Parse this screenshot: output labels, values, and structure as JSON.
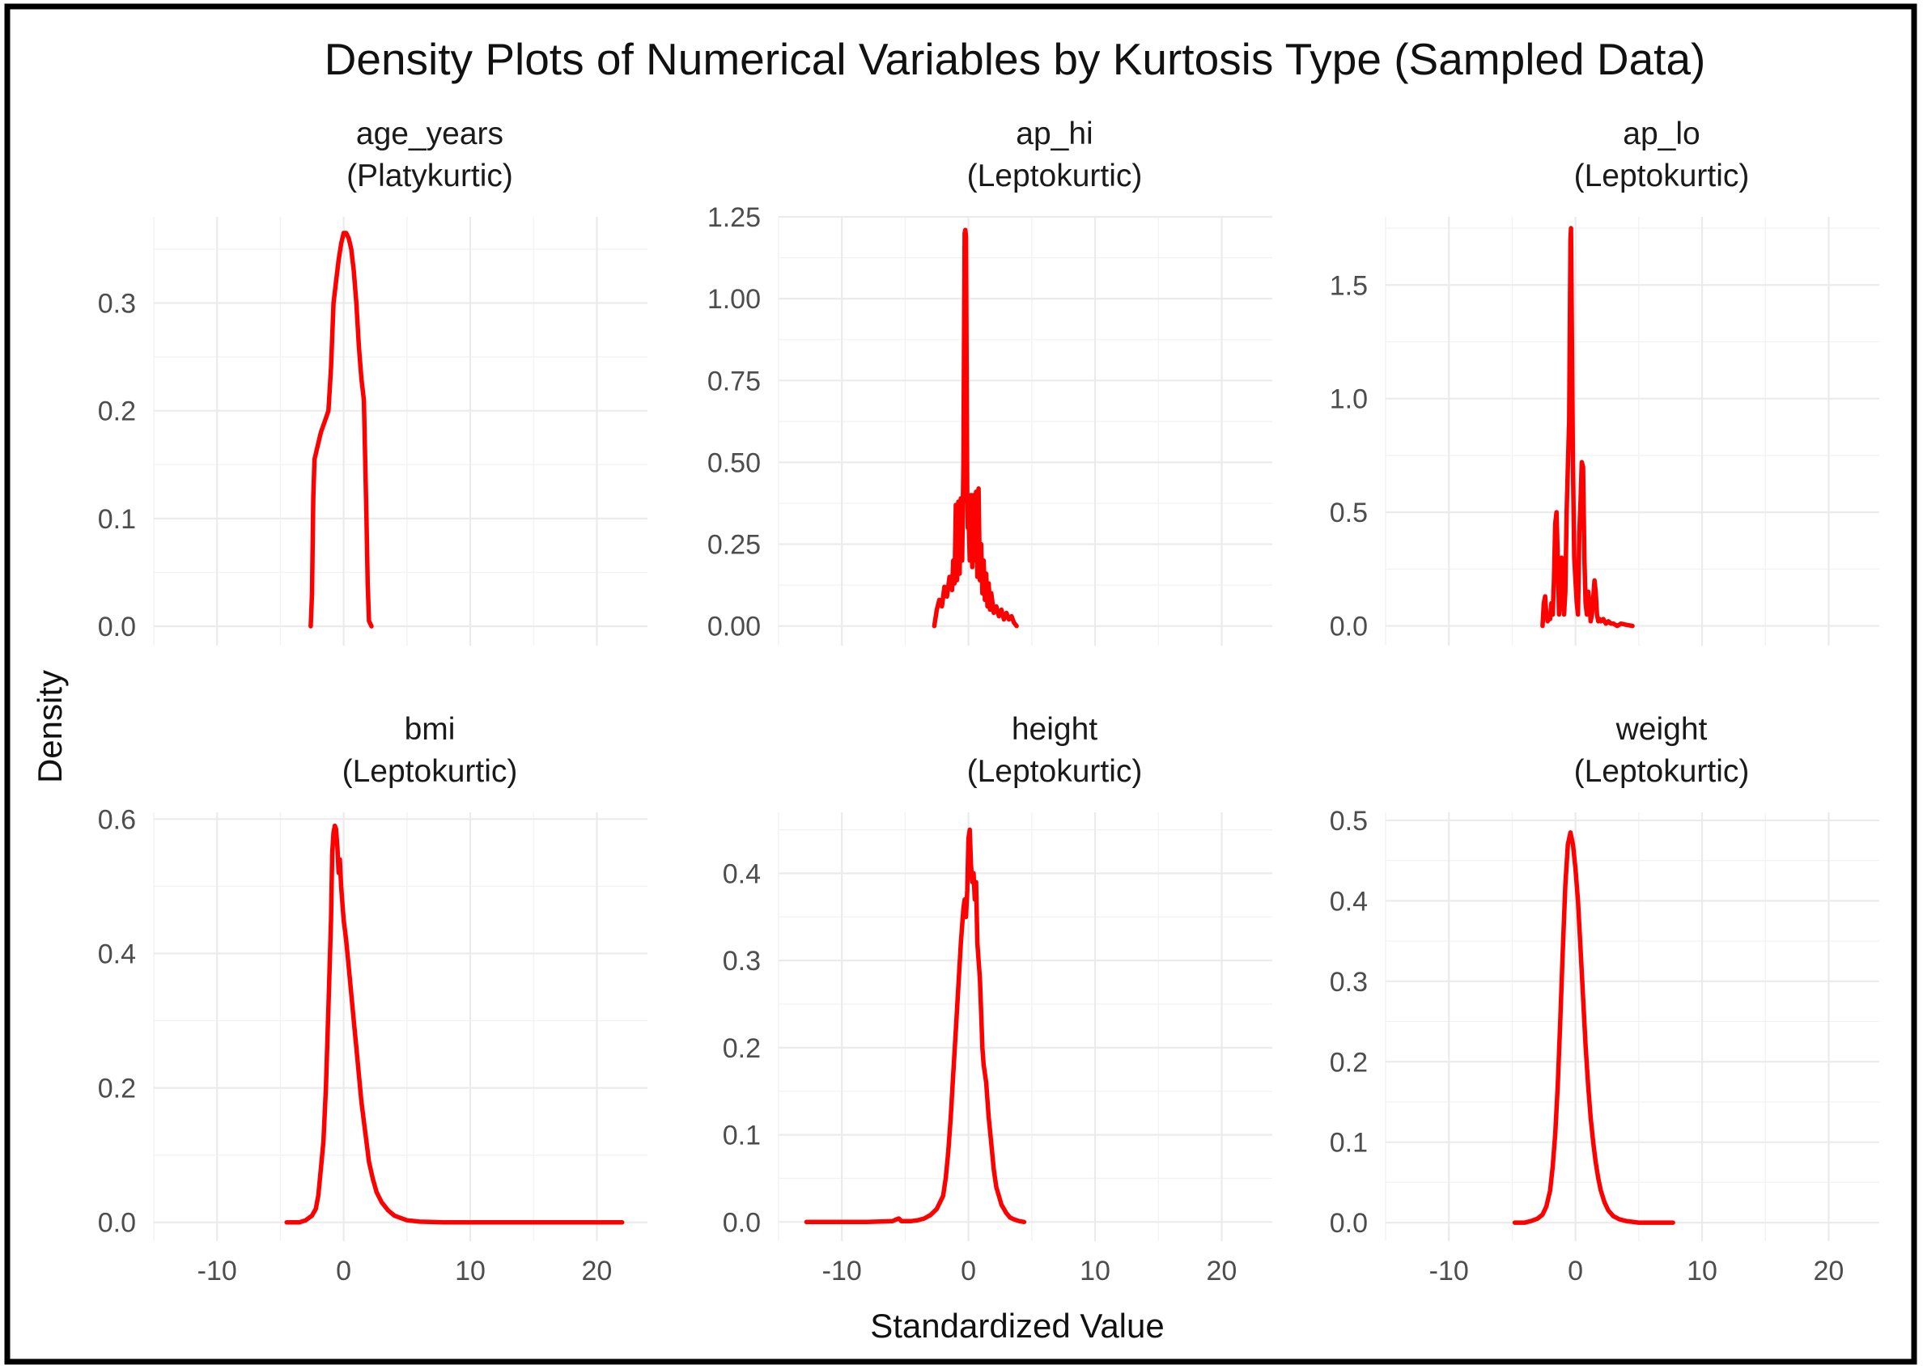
{
  "chart_data": {
    "type": "line",
    "title": "Density Plots of Numerical Variables by Kurtosis Type (Sampled Data)",
    "xlabel": "Standardized Value",
    "ylabel": "Density",
    "line_color": "#ff0000",
    "grid": true,
    "legend": "none",
    "xlim": [
      -15,
      24
    ],
    "x_ticks": [
      -10,
      0,
      10,
      20
    ],
    "x_tick_labels": [
      "-10",
      "0",
      "10",
      "20"
    ],
    "panels": [
      {
        "id": "age_years",
        "variable": "age_years",
        "kurtosis": "(Platykurtic)",
        "ylim": [
          -0.018,
          0.38
        ],
        "y_ticks": [
          0,
          0.1,
          0.2,
          0.3
        ],
        "y_tick_labels": [
          "0.0",
          "0.1",
          "0.2",
          "0.3"
        ],
        "x": [
          -2.6,
          -2.5,
          -2.4,
          -2.3,
          -2.2,
          -2.0,
          -1.8,
          -1.5,
          -1.2,
          -1.0,
          -0.8,
          -0.6,
          -0.4,
          -0.2,
          0.0,
          0.2,
          0.4,
          0.6,
          0.8,
          1.0,
          1.2,
          1.4,
          1.6,
          1.8,
          1.9,
          2.0,
          2.2
        ],
        "y": [
          0.0,
          0.03,
          0.12,
          0.155,
          0.16,
          0.17,
          0.18,
          0.19,
          0.2,
          0.24,
          0.3,
          0.32,
          0.34,
          0.355,
          0.365,
          0.365,
          0.36,
          0.35,
          0.33,
          0.3,
          0.26,
          0.23,
          0.21,
          0.1,
          0.04,
          0.005,
          0.0
        ]
      },
      {
        "id": "ap_hi",
        "variable": "ap_hi",
        "kurtosis": "(Leptokurtic)",
        "ylim": [
          -0.06,
          1.25
        ],
        "y_ticks": [
          0,
          0.25,
          0.5,
          0.75,
          1.0,
          1.25
        ],
        "y_tick_labels": [
          "0.00",
          "0.25",
          "0.50",
          "0.75",
          "1.00",
          "1.25"
        ],
        "x": [
          -2.7,
          -2.5,
          -2.3,
          -2.1,
          -1.9,
          -1.7,
          -1.5,
          -1.3,
          -1.2,
          -1.1,
          -1.0,
          -0.9,
          -0.8,
          -0.7,
          -0.6,
          -0.5,
          -0.4,
          -0.35,
          -0.3,
          -0.25,
          -0.2,
          -0.15,
          -0.1,
          -0.05,
          0.0,
          0.1,
          0.2,
          0.3,
          0.4,
          0.5,
          0.6,
          0.7,
          0.8,
          0.9,
          1.0,
          1.1,
          1.2,
          1.3,
          1.4,
          1.5,
          1.6,
          1.7,
          1.8,
          2.0,
          2.2,
          2.4,
          2.6,
          2.8,
          3.0,
          3.2,
          3.4,
          3.6,
          3.8
        ],
        "y": [
          0.0,
          0.05,
          0.08,
          0.06,
          0.12,
          0.09,
          0.15,
          0.11,
          0.2,
          0.13,
          0.37,
          0.14,
          0.38,
          0.16,
          0.39,
          0.2,
          0.5,
          0.85,
          1.2,
          1.21,
          1.19,
          0.8,
          0.4,
          0.3,
          0.35,
          0.2,
          0.4,
          0.18,
          0.4,
          0.2,
          0.41,
          0.15,
          0.42,
          0.14,
          0.25,
          0.1,
          0.2,
          0.08,
          0.16,
          0.06,
          0.13,
          0.05,
          0.1,
          0.04,
          0.06,
          0.03,
          0.05,
          0.02,
          0.04,
          0.02,
          0.03,
          0.01,
          0.0
        ]
      },
      {
        "id": "ap_lo",
        "variable": "ap_lo",
        "kurtosis": "(Leptokurtic)",
        "ylim": [
          -0.087,
          1.8
        ],
        "y_ticks": [
          0,
          0.5,
          1.0,
          1.5
        ],
        "y_tick_labels": [
          "0.0",
          "0.5",
          "1.0",
          "1.5"
        ],
        "x": [
          -2.6,
          -2.5,
          -2.4,
          -2.3,
          -2.2,
          -2.1,
          -2.0,
          -1.9,
          -1.8,
          -1.7,
          -1.6,
          -1.5,
          -1.4,
          -1.3,
          -1.2,
          -1.1,
          -1.0,
          -0.9,
          -0.8,
          -0.7,
          -0.6,
          -0.5,
          -0.45,
          -0.4,
          -0.35,
          -0.3,
          -0.2,
          -0.1,
          0.0,
          0.1,
          0.2,
          0.3,
          0.4,
          0.5,
          0.6,
          0.7,
          0.8,
          0.9,
          1.0,
          1.1,
          1.2,
          1.3,
          1.4,
          1.5,
          1.6,
          1.7,
          1.8,
          1.9,
          2.0,
          2.2,
          2.4,
          2.6,
          2.8,
          3.0,
          3.3,
          3.6,
          4.0,
          4.5
        ],
        "y": [
          0.0,
          0.1,
          0.13,
          0.05,
          0.02,
          0.04,
          0.03,
          0.1,
          0.05,
          0.2,
          0.45,
          0.5,
          0.3,
          0.05,
          0.1,
          0.3,
          0.25,
          0.05,
          0.15,
          0.5,
          0.7,
          0.9,
          1.3,
          1.7,
          1.75,
          1.4,
          0.7,
          0.3,
          0.2,
          0.1,
          0.05,
          0.4,
          0.55,
          0.72,
          0.7,
          0.3,
          0.1,
          0.05,
          0.15,
          0.1,
          0.02,
          0.05,
          0.12,
          0.2,
          0.15,
          0.05,
          0.02,
          0.03,
          0.02,
          0.03,
          0.01,
          0.02,
          0.01,
          0.01,
          0.0,
          0.01,
          0.005,
          0.0
        ]
      },
      {
        "id": "bmi",
        "variable": "bmi",
        "kurtosis": "(Leptokurtic)",
        "ylim": [
          -0.028,
          0.61
        ],
        "y_ticks": [
          0,
          0.2,
          0.4,
          0.6
        ],
        "y_tick_labels": [
          "0.0",
          "0.2",
          "0.4",
          "0.6"
        ],
        "x": [
          -4.5,
          -3.5,
          -3.0,
          -2.5,
          -2.2,
          -2.0,
          -1.8,
          -1.6,
          -1.4,
          -1.2,
          -1.0,
          -0.9,
          -0.8,
          -0.7,
          -0.6,
          -0.5,
          -0.4,
          -0.3,
          -0.2,
          0.0,
          0.2,
          0.4,
          0.6,
          0.8,
          1.0,
          1.2,
          1.4,
          1.6,
          1.8,
          2.0,
          2.3,
          2.6,
          3.0,
          3.5,
          4.0,
          5.0,
          6.0,
          8.0,
          10.0,
          14.0,
          18.0,
          22.0
        ],
        "y": [
          0.0,
          0.0,
          0.003,
          0.01,
          0.02,
          0.04,
          0.08,
          0.12,
          0.2,
          0.32,
          0.45,
          0.55,
          0.58,
          0.59,
          0.585,
          0.56,
          0.52,
          0.54,
          0.5,
          0.45,
          0.42,
          0.38,
          0.34,
          0.3,
          0.26,
          0.22,
          0.18,
          0.15,
          0.12,
          0.09,
          0.065,
          0.045,
          0.03,
          0.018,
          0.01,
          0.003,
          0.001,
          0.0,
          0.0,
          0.0,
          0.0,
          0.0
        ]
      },
      {
        "id": "height",
        "variable": "height",
        "kurtosis": "(Leptokurtic)",
        "ylim": [
          -0.022,
          0.47
        ],
        "y_ticks": [
          0,
          0.1,
          0.2,
          0.3,
          0.4
        ],
        "y_tick_labels": [
          "0.0",
          "0.1",
          "0.2",
          "0.3",
          "0.4"
        ],
        "x": [
          -12.8,
          -10.0,
          -8.0,
          -6.0,
          -5.7,
          -5.5,
          -5.3,
          -4.5,
          -4.0,
          -3.5,
          -3.0,
          -2.5,
          -2.0,
          -1.8,
          -1.6,
          -1.4,
          -1.2,
          -1.0,
          -0.8,
          -0.6,
          -0.4,
          -0.3,
          -0.2,
          -0.1,
          0.0,
          0.1,
          0.2,
          0.3,
          0.4,
          0.5,
          0.6,
          0.7,
          0.8,
          0.9,
          1.0,
          1.1,
          1.2,
          1.4,
          1.6,
          1.8,
          2.0,
          2.2,
          2.4,
          2.6,
          2.8,
          3.0,
          3.3,
          3.6,
          4.0,
          4.4
        ],
        "y": [
          0.0,
          0.0,
          0.0,
          0.001,
          0.003,
          0.004,
          0.001,
          0.001,
          0.002,
          0.004,
          0.008,
          0.015,
          0.03,
          0.05,
          0.08,
          0.12,
          0.17,
          0.22,
          0.27,
          0.32,
          0.36,
          0.37,
          0.35,
          0.38,
          0.44,
          0.45,
          0.41,
          0.39,
          0.4,
          0.37,
          0.39,
          0.32,
          0.3,
          0.28,
          0.24,
          0.2,
          0.18,
          0.16,
          0.12,
          0.09,
          0.06,
          0.04,
          0.03,
          0.02,
          0.015,
          0.01,
          0.005,
          0.003,
          0.001,
          0.0
        ]
      },
      {
        "id": "weight",
        "variable": "weight",
        "kurtosis": "(Leptokurtic)",
        "ylim": [
          -0.023,
          0.51
        ],
        "y_ticks": [
          0,
          0.1,
          0.2,
          0.3,
          0.4,
          0.5
        ],
        "y_tick_labels": [
          "0.0",
          "0.1",
          "0.2",
          "0.3",
          "0.4",
          "0.5"
        ],
        "x": [
          -4.8,
          -4.0,
          -3.5,
          -3.0,
          -2.6,
          -2.3,
          -2.0,
          -1.8,
          -1.6,
          -1.4,
          -1.2,
          -1.0,
          -0.8,
          -0.6,
          -0.4,
          -0.2,
          0.0,
          0.2,
          0.4,
          0.6,
          0.8,
          1.0,
          1.2,
          1.4,
          1.6,
          1.8,
          2.0,
          2.3,
          2.6,
          3.0,
          3.5,
          4.0,
          5.0,
          6.0,
          7.0,
          7.7
        ],
        "y": [
          0.0,
          0.0,
          0.002,
          0.005,
          0.01,
          0.02,
          0.04,
          0.07,
          0.11,
          0.17,
          0.25,
          0.34,
          0.42,
          0.47,
          0.485,
          0.47,
          0.44,
          0.4,
          0.34,
          0.28,
          0.22,
          0.17,
          0.13,
          0.1,
          0.075,
          0.055,
          0.04,
          0.025,
          0.015,
          0.008,
          0.004,
          0.002,
          0.0,
          0.0,
          0.0,
          0.0
        ]
      }
    ]
  }
}
